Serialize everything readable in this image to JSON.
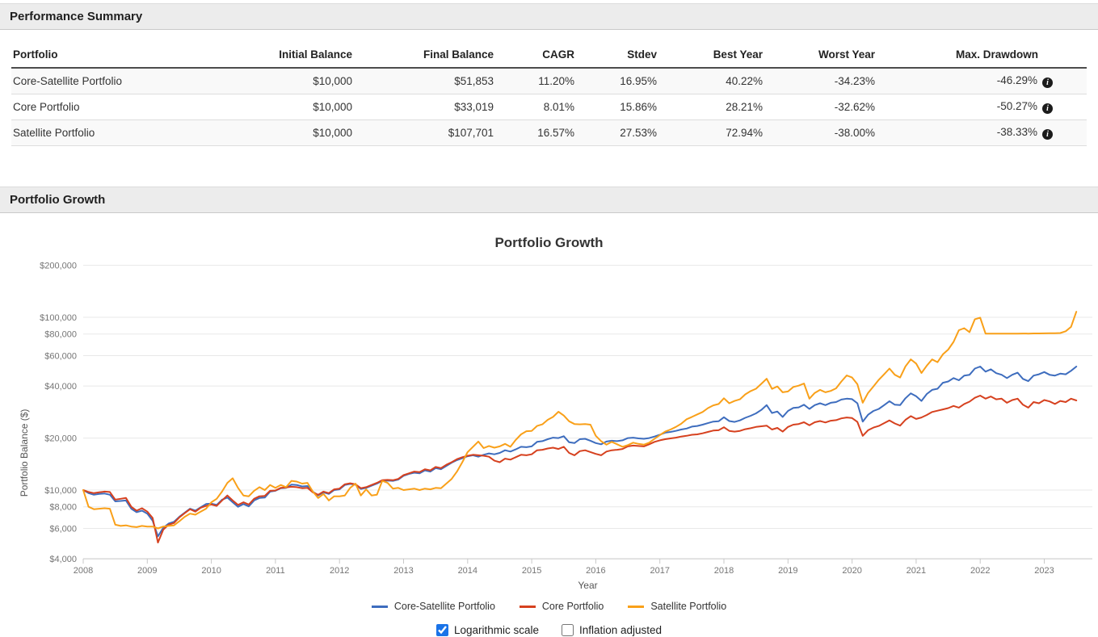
{
  "sections": {
    "summary_title": "Performance Summary",
    "growth_title": "Portfolio Growth"
  },
  "summary_table": {
    "columns": [
      "Portfolio",
      "Initial Balance",
      "Final Balance",
      "CAGR",
      "Stdev",
      "Best Year",
      "Worst Year",
      "Max. Drawdown"
    ],
    "rows": [
      {
        "cells": [
          "Core-Satellite Portfolio",
          "$10,000",
          "$51,853",
          "11.20%",
          "16.95%",
          "40.22%",
          "-34.23%",
          "-46.29%"
        ],
        "has_info_icon": true
      },
      {
        "cells": [
          "Core Portfolio",
          "$10,000",
          "$33,019",
          "8.01%",
          "15.86%",
          "28.21%",
          "-32.62%",
          "-50.27%"
        ],
        "has_info_icon": true
      },
      {
        "cells": [
          "Satellite Portfolio",
          "$10,000",
          "$107,701",
          "16.57%",
          "27.53%",
          "72.94%",
          "-38.00%",
          "-38.33%"
        ],
        "has_info_icon": true
      }
    ]
  },
  "controls": {
    "checkboxes": [
      {
        "label": "Logarithmic scale",
        "checked": true
      },
      {
        "label": "Inflation adjusted",
        "checked": false
      }
    ]
  },
  "chart_data": {
    "type": "line",
    "title": "Portfolio Growth",
    "xlabel": "Year",
    "ylabel": "Portfolio Balance ($)",
    "yscale": "log",
    "ylim": [
      4000,
      220000
    ],
    "grid": "horizontal",
    "legend_position": "bottom",
    "x_start_year": 2008,
    "x_interval": "monthly",
    "x_ticks": [
      2008,
      2009,
      2010,
      2011,
      2012,
      2013,
      2014,
      2015,
      2016,
      2017,
      2018,
      2019,
      2020,
      2021,
      2022,
      2023
    ],
    "y_ticks": [
      {
        "v": 200000,
        "label": "$200,000"
      },
      {
        "v": 100000,
        "label": "$100,000"
      },
      {
        "v": 80000,
        "label": "$80,000"
      },
      {
        "v": 60000,
        "label": "$60,000"
      },
      {
        "v": 40000,
        "label": "$40,000"
      },
      {
        "v": 20000,
        "label": "$20,000"
      },
      {
        "v": 10000,
        "label": "$10,000"
      },
      {
        "v": 8000,
        "label": "$8,000"
      },
      {
        "v": 6000,
        "label": "$6,000"
      },
      {
        "v": 4000,
        "label": "$4,000"
      }
    ],
    "series": [
      {
        "name": "Core-Satellite Portfolio",
        "color": "#3E6DBE",
        "final_balance": 51853,
        "values": [
          10000,
          9600,
          9400,
          9500,
          9550,
          9400,
          8600,
          8650,
          8700,
          7800,
          7450,
          7600,
          7300,
          6650,
          5400,
          6050,
          6400,
          6550,
          7000,
          7400,
          7800,
          7600,
          7950,
          8300,
          8350,
          8200,
          8800,
          9050,
          8500,
          8000,
          8300,
          8050,
          8700,
          9000,
          9050,
          9800,
          9900,
          10250,
          10300,
          10750,
          10700,
          10500,
          10550,
          9800,
          9300,
          9700,
          9500,
          10000,
          10100,
          10700,
          10850,
          10750,
          10150,
          10300,
          10600,
          10900,
          11300,
          11350,
          11300,
          11500,
          12100,
          12400,
          12600,
          12500,
          13000,
          12800,
          13400,
          13200,
          13800,
          14400,
          14900,
          15300,
          15700,
          15900,
          15600,
          16000,
          16300,
          16100,
          16400,
          17000,
          16700,
          17200,
          17800,
          17700,
          17900,
          19000,
          19200,
          19700,
          20100,
          20000,
          20500,
          18900,
          18700,
          19700,
          19800,
          19300,
          18700,
          18400,
          19100,
          19300,
          19200,
          19400,
          20000,
          20100,
          19900,
          19800,
          20000,
          20400,
          20900,
          21500,
          21700,
          22000,
          22400,
          22700,
          23300,
          23500,
          23900,
          24400,
          24900,
          25000,
          26400,
          25100,
          24800,
          25300,
          26200,
          26900,
          27800,
          29100,
          31000,
          27900,
          28500,
          26500,
          28700,
          29900,
          30100,
          31200,
          29500,
          31000,
          31800,
          31000,
          32000,
          32300,
          33400,
          33800,
          33600,
          31800,
          24900,
          27300,
          28700,
          29500,
          31000,
          32700,
          31200,
          31000,
          34000,
          36300,
          34900,
          32800,
          36000,
          38000,
          38600,
          41800,
          42500,
          44500,
          43200,
          46000,
          46500,
          50500,
          51900,
          48500,
          50000,
          47500,
          46500,
          44500,
          46500,
          47800,
          44000,
          42700,
          46000,
          46800,
          48200,
          46500,
          46000,
          47200,
          46800,
          49000,
          51853
        ]
      },
      {
        "name": "Core Portfolio",
        "color": "#D6411F",
        "final_balance": 33019,
        "values": [
          10000,
          9750,
          9600,
          9700,
          9800,
          9750,
          8800,
          8900,
          9000,
          8000,
          7600,
          7850,
          7500,
          6900,
          4970,
          5900,
          6300,
          6450,
          6950,
          7350,
          7750,
          7500,
          7900,
          8100,
          8250,
          8100,
          8700,
          9300,
          8700,
          8200,
          8500,
          8250,
          8900,
          9200,
          9250,
          9900,
          9950,
          10300,
          10350,
          10450,
          10400,
          10250,
          10300,
          9700,
          9400,
          9800,
          9600,
          10100,
          10200,
          10800,
          10950,
          10800,
          10250,
          10400,
          10700,
          11000,
          11400,
          11450,
          11400,
          11600,
          12200,
          12500,
          12800,
          12700,
          13200,
          13000,
          13600,
          13400,
          14000,
          14500,
          15100,
          15500,
          15800,
          16000,
          15900,
          15800,
          15600,
          14800,
          14500,
          15200,
          15000,
          15500,
          16000,
          15900,
          16100,
          17000,
          17100,
          17400,
          17600,
          17300,
          17800,
          16400,
          15900,
          16800,
          17000,
          16600,
          16200,
          15900,
          16700,
          17000,
          17100,
          17300,
          17900,
          18100,
          18000,
          17900,
          18400,
          19000,
          19400,
          19700,
          19900,
          20100,
          20400,
          20600,
          20900,
          21000,
          21300,
          21700,
          22100,
          22200,
          23100,
          22000,
          21800,
          22000,
          22500,
          22800,
          23200,
          23400,
          23600,
          22400,
          22900,
          21800,
          23200,
          23900,
          24100,
          24700,
          23700,
          24700,
          25100,
          24600,
          25200,
          25400,
          26000,
          26300,
          26100,
          24800,
          20600,
          22200,
          23000,
          23500,
          24400,
          25300,
          24300,
          23600,
          25500,
          26800,
          25800,
          26300,
          27200,
          28300,
          28800,
          29300,
          29800,
          30700,
          30000,
          31500,
          32500,
          34200,
          35200,
          33800,
          34800,
          33500,
          33800,
          32000,
          33200,
          33800,
          31200,
          30000,
          32300,
          31800,
          33200,
          32600,
          31500,
          32800,
          32300,
          33800,
          33019
        ]
      },
      {
        "name": "Satellite Portfolio",
        "color": "#F9A019",
        "final_balance": 107701,
        "values": [
          10000,
          8000,
          7750,
          7800,
          7850,
          7800,
          6300,
          6200,
          6250,
          6150,
          6100,
          6200,
          6150,
          6150,
          6000,
          6150,
          6200,
          6250,
          6600,
          7000,
          7300,
          7200,
          7500,
          7800,
          8500,
          8900,
          9800,
          11000,
          11700,
          10300,
          9300,
          9200,
          9900,
          10400,
          10000,
          10700,
          10300,
          10700,
          10400,
          11300,
          11200,
          10900,
          11000,
          9800,
          9000,
          9500,
          8700,
          9200,
          9200,
          9300,
          10300,
          10900,
          9300,
          10100,
          9300,
          9400,
          11300,
          11000,
          10200,
          10300,
          10000,
          10100,
          10200,
          10000,
          10200,
          10100,
          10300,
          10250,
          10900,
          11600,
          12800,
          14500,
          16600,
          17800,
          19100,
          17500,
          18000,
          17600,
          17900,
          18500,
          17800,
          19500,
          21000,
          21900,
          22000,
          23500,
          24000,
          25500,
          26500,
          28400,
          27000,
          25000,
          24100,
          24000,
          24100,
          23900,
          20600,
          19200,
          18300,
          19000,
          18400,
          17800,
          18200,
          18800,
          18500,
          18300,
          18800,
          19800,
          20800,
          21800,
          22400,
          23200,
          24200,
          25700,
          26500,
          27400,
          28300,
          29800,
          30900,
          31500,
          34000,
          31800,
          32800,
          33500,
          35800,
          37400,
          38600,
          41200,
          44100,
          38500,
          39800,
          36800,
          37200,
          39500,
          40200,
          41400,
          33800,
          36500,
          38000,
          36800,
          37500,
          38800,
          42500,
          46100,
          44800,
          41000,
          32000,
          36500,
          39800,
          43500,
          46800,
          50500,
          46500,
          44800,
          52000,
          57100,
          54000,
          47600,
          52500,
          57000,
          55000,
          61000,
          65000,
          72000,
          84200,
          86500,
          82000,
          97500,
          99500,
          80500,
          80400,
          80450,
          80500,
          80400,
          80450,
          80500,
          80550,
          80500,
          80600,
          80650,
          80700,
          80800,
          80900,
          81100,
          83000,
          88000,
          107701
        ]
      }
    ]
  }
}
